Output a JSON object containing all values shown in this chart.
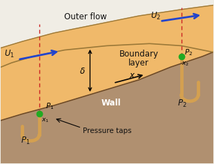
{
  "bg_color": "#f0ede5",
  "orange_color": "#f0b96a",
  "wall_color": "#b09070",
  "wall_dark_color": "#8a6848",
  "tap_color": "#d4a050",
  "green_dot_color": "#22aa22",
  "arrow_color": "#2244cc",
  "dashed_color": "#cc2222",
  "text_color": "#111111",
  "outer_flow_label": "Outer flow",
  "boundary_layer_label": "Boundary\nlayer",
  "wall_label": "Wall",
  "pressure_taps_label": "Pressure taps"
}
